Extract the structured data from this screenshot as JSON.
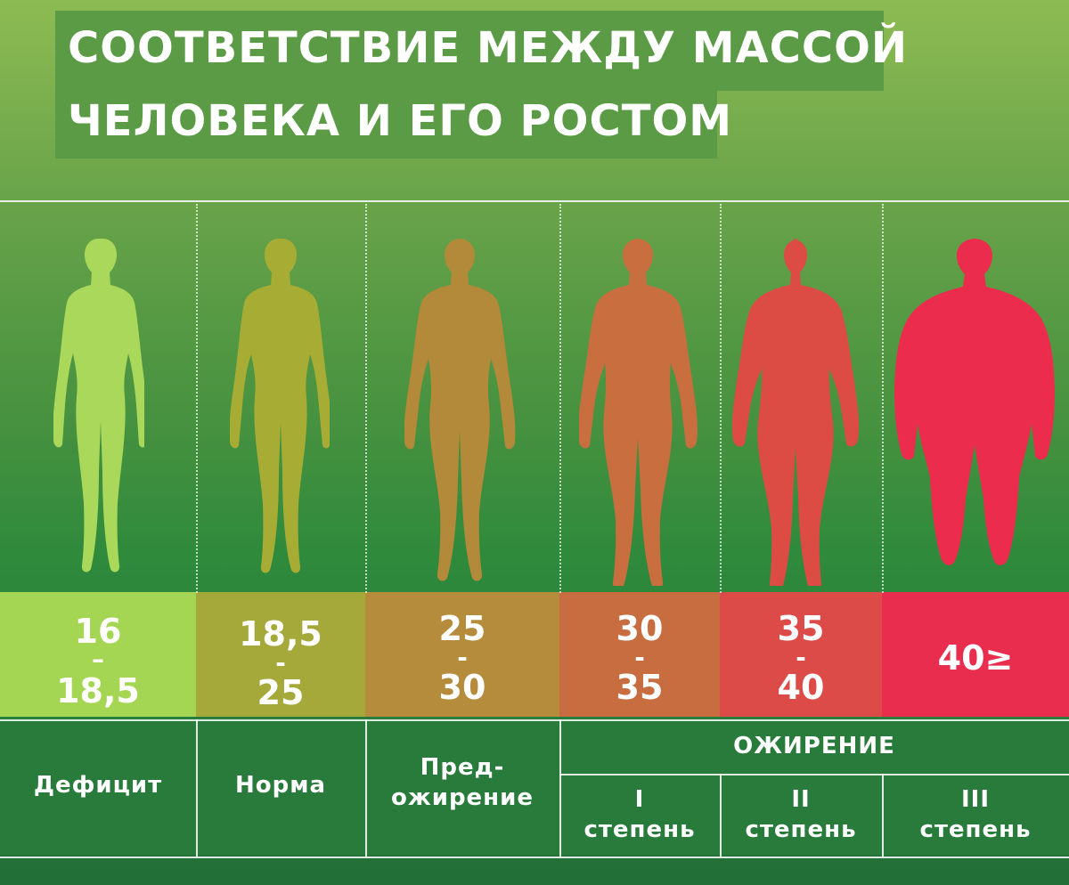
{
  "title": {
    "line1": "СООТВЕТСТВИЕ МЕЖДУ МАССОЙ",
    "line2": "ЧЕЛОВЕКА И ЕГО РОСТОМ"
  },
  "figures": [
    {
      "name": "deficit-figure",
      "color": "#a9d85a",
      "icon": "thin-woman-silhouette-icon"
    },
    {
      "name": "norm-figure",
      "color": "#a7ad34",
      "icon": "normal-woman-silhouette-icon"
    },
    {
      "name": "pre-obesity-figure",
      "color": "#b3893a",
      "icon": "fuller-woman-silhouette-icon"
    },
    {
      "name": "obesity-1-figure",
      "color": "#c96e3f",
      "icon": "overweight-woman-silhouette-icon"
    },
    {
      "name": "obesity-2-figure",
      "color": "#dc4c45",
      "icon": "obese-woman-silhouette-icon"
    },
    {
      "name": "obesity-3-figure",
      "color": "#eb2c4d",
      "icon": "very-obese-woman-silhouette-icon"
    }
  ],
  "bands": [
    {
      "from": "16",
      "dash": "–",
      "to": "18,5",
      "color": "#a5d653"
    },
    {
      "from": "18,5",
      "dash": "-",
      "to": "25",
      "color": "#a4a93a"
    },
    {
      "from": "25",
      "dash": "-",
      "to": "30",
      "color": "#b58b3c"
    },
    {
      "from": "30",
      "dash": "-",
      "to": "35",
      "color": "#c86d3f"
    },
    {
      "from": "35",
      "dash": "-",
      "to": "40",
      "color": "#dc4b47"
    },
    {
      "single": "40≥",
      "color": "#e92d4f"
    }
  ],
  "categories": {
    "deficit": "Дефицит",
    "norm": "Норма",
    "pre_obesity_1": "Пред-",
    "pre_obesity_2": "ожирение",
    "obesity": "ОЖИРЕНИЕ",
    "degrees": [
      {
        "numeral": "I",
        "word": "степень"
      },
      {
        "numeral": "II",
        "word": "степень"
      },
      {
        "numeral": "III",
        "word": "степень"
      }
    ]
  }
}
